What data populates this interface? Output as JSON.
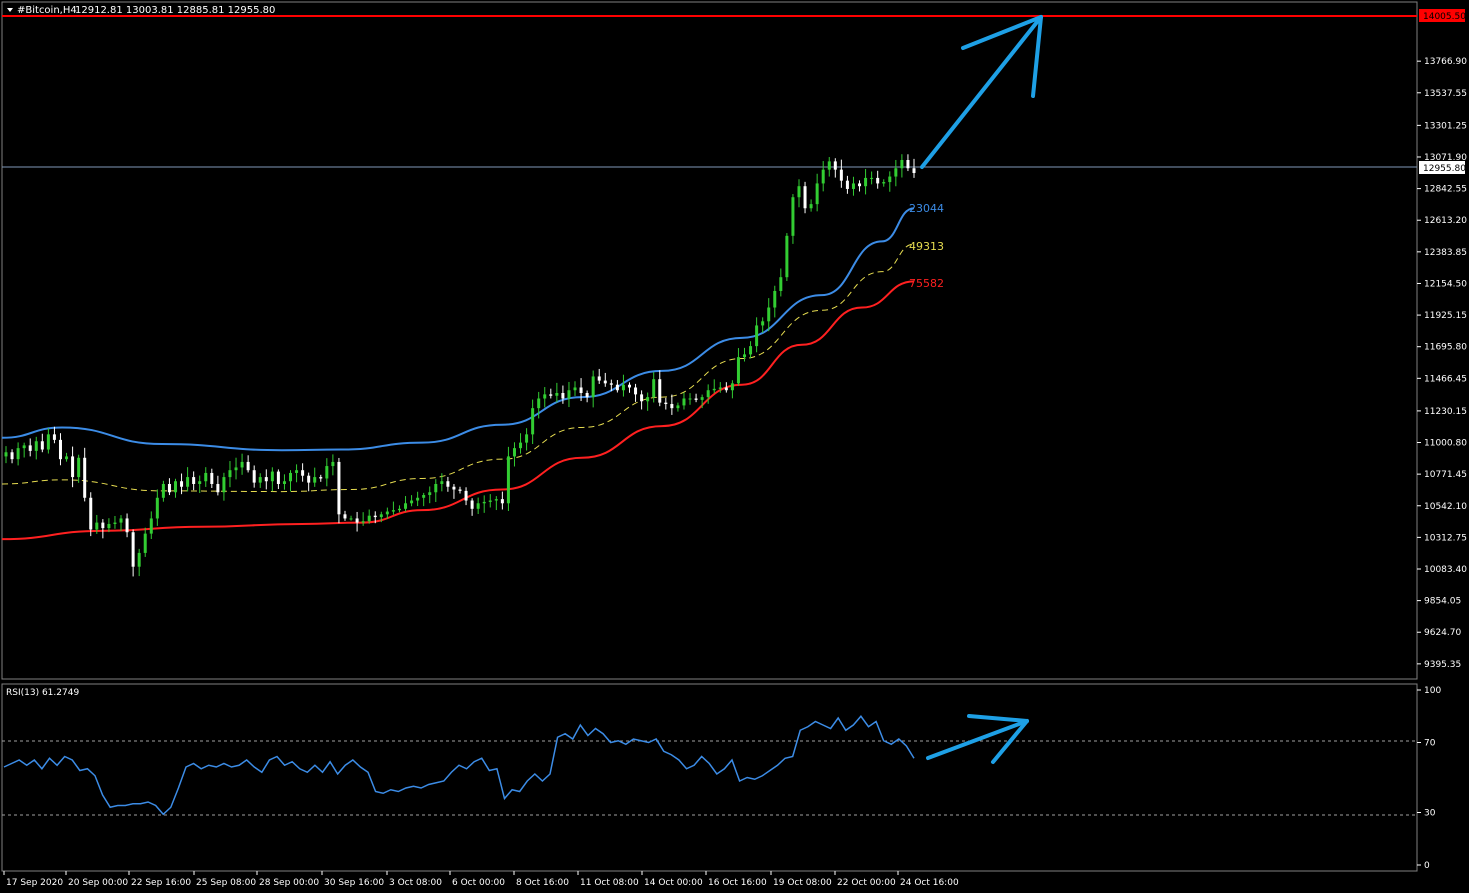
{
  "header": {
    "symbol": "#Bitcoin,H4",
    "ohlc": "12912.81 13003.81 12885.81 12955.80"
  },
  "rsi_panel": {
    "label": "RSI(13) 61.2749"
  },
  "colors": {
    "background": "#000000",
    "bull_candle": "#32cd32",
    "bear_candle": "#ffffff",
    "ma_fast": "#3c8ce6",
    "ma_mid": "#e6dc50",
    "ma_slow": "#ff2020",
    "resistance": "#ff0000",
    "rsi_line": "#3c8ce6",
    "arrow": "#1ea0e6",
    "grid": "#808080"
  },
  "price_axis": {
    "ticks": [
      "13766.90",
      "13537.55",
      "13301.25",
      "13071.90",
      "12842.55",
      "12613.20",
      "12383.85",
      "12154.50",
      "11925.15",
      "11695.80",
      "11466.45",
      "11230.15",
      "11000.80",
      "10771.45",
      "10542.10",
      "10312.75",
      "10083.40",
      "9854.05",
      "9624.70",
      "9395.35"
    ],
    "current_price": "12955.80",
    "resistance_price": "14005.50"
  },
  "time_axis": {
    "ticks": [
      "17 Sep 2020",
      "20 Sep 00:00",
      "22 Sep 16:00",
      "25 Sep 08:00",
      "28 Sep 00:00",
      "30 Sep 16:00",
      "3 Oct 08:00",
      "6 Oct 00:00",
      "8 Oct 16:00",
      "11 Oct 08:00",
      "14 Oct 00:00",
      "16 Oct 16:00",
      "19 Oct 08:00",
      "22 Oct 00:00",
      "24 Oct 16:00"
    ]
  },
  "ma_labels": {
    "fast": "23044",
    "mid": "49313",
    "slow": "75582"
  },
  "rsi_axis": {
    "ticks": [
      "100",
      "70",
      "30",
      "0"
    ],
    "levels": [
      70,
      30
    ]
  },
  "chart_data": {
    "type": "candlestick",
    "symbol": "#Bitcoin",
    "timeframe": "H4",
    "ylim": [
      9300,
      14080
    ],
    "resistance": 14005.5,
    "current_price": 12955.8,
    "closes_approx": [
      10930,
      10880,
      10960,
      10980,
      10940,
      11010,
      10950,
      11060,
      11020,
      10880,
      10900,
      10750,
      10890,
      10600,
      10370,
      10420,
      10380,
      10410,
      10420,
      10450,
      10350,
      10100,
      10200,
      10340,
      10450,
      10600,
      10700,
      10640,
      10720,
      10680,
      10750,
      10700,
      10720,
      10780,
      10700,
      10640,
      10750,
      10800,
      10820,
      10860,
      10800,
      10710,
      10750,
      10720,
      10790,
      10700,
      10720,
      10780,
      10800,
      10760,
      10710,
      10750,
      10740,
      10830,
      10860,
      10480,
      10450,
      10450,
      10420,
      10430,
      10470,
      10460,
      10480,
      10500,
      10510,
      10520,
      10560,
      10580,
      10600,
      10620,
      10640,
      10700,
      10720,
      10680,
      10660,
      10650,
      10580,
      10520,
      10560,
      10570,
      10580,
      10590,
      10560,
      10900,
      10960,
      11000,
      11060,
      11250,
      11320,
      11350,
      11340,
      11360,
      11320,
      11380,
      11400,
      11360,
      11330,
      11480,
      11450,
      11430,
      11420,
      11380,
      11420,
      11400,
      11350,
      11300,
      11330,
      11460,
      11290,
      11280,
      11250,
      11270,
      11320,
      11320,
      11310,
      11330,
      11380,
      11390,
      11400,
      11380,
      11430,
      11620,
      11640,
      11700,
      11850,
      11880,
      11980,
      12100,
      12200,
      12500,
      12780,
      12860,
      12700,
      12730,
      12880,
      12980,
      13040,
      12980,
      12900,
      12840,
      12880,
      12860,
      12920,
      12920,
      12880,
      12890,
      12930,
      12990,
      13050,
      12990,
      12955.8
    ],
    "ma_fast_approx": [
      [
        0,
        11035
      ],
      [
        60,
        11110
      ],
      [
        160,
        10990
      ],
      [
        280,
        10945
      ],
      [
        340,
        10950
      ],
      [
        420,
        11000
      ],
      [
        500,
        11130
      ],
      [
        580,
        11330
      ],
      [
        660,
        11520
      ],
      [
        740,
        11760
      ],
      [
        820,
        12070
      ],
      [
        880,
        12460
      ],
      [
        912,
        12700
      ]
    ],
    "ma_mid_approx": [
      [
        0,
        10700
      ],
      [
        60,
        10730
      ],
      [
        160,
        10650
      ],
      [
        280,
        10645
      ],
      [
        350,
        10660
      ],
      [
        420,
        10740
      ],
      [
        500,
        10880
      ],
      [
        580,
        11110
      ],
      [
        660,
        11330
      ],
      [
        740,
        11610
      ],
      [
        820,
        11960
      ],
      [
        880,
        12240
      ],
      [
        912,
        12440
      ]
    ],
    "ma_slow_approx": [
      [
        0,
        10300
      ],
      [
        100,
        10360
      ],
      [
        200,
        10390
      ],
      [
        300,
        10410
      ],
      [
        360,
        10420
      ],
      [
        420,
        10510
      ],
      [
        500,
        10660
      ],
      [
        580,
        10890
      ],
      [
        660,
        11120
      ],
      [
        740,
        11420
      ],
      [
        800,
        11710
      ],
      [
        860,
        11980
      ],
      [
        912,
        12170
      ]
    ],
    "rsi_approx": [
      56,
      58,
      60,
      57,
      60,
      55,
      61,
      57,
      62,
      60,
      54,
      55,
      51,
      40,
      33,
      34,
      34,
      35,
      35,
      36,
      34,
      29,
      33,
      44,
      56,
      58,
      55,
      57,
      56,
      58,
      56,
      57,
      60,
      56,
      53,
      60,
      62,
      57,
      59,
      55,
      53,
      57,
      53,
      59,
      52,
      57,
      60,
      56,
      53,
      42,
      41,
      43,
      42,
      44,
      45,
      44,
      46,
      47,
      48,
      53,
      57,
      55,
      59,
      61,
      54,
      55,
      38,
      43,
      42,
      48,
      52,
      48,
      52,
      73,
      75,
      72,
      80,
      74,
      78,
      75,
      70,
      71,
      69,
      72,
      71,
      70,
      72,
      65,
      63,
      60,
      55,
      57,
      62,
      58,
      52,
      55,
      60,
      48,
      50,
      49,
      51,
      54,
      57,
      61,
      62,
      77,
      79,
      82,
      80,
      78,
      84,
      77,
      80,
      85,
      79,
      82,
      71,
      69,
      72,
      68,
      61
    ],
    "annotations": [
      "upward arrow on price toward 14005.50 resistance",
      "upward arrow on RSI"
    ]
  }
}
